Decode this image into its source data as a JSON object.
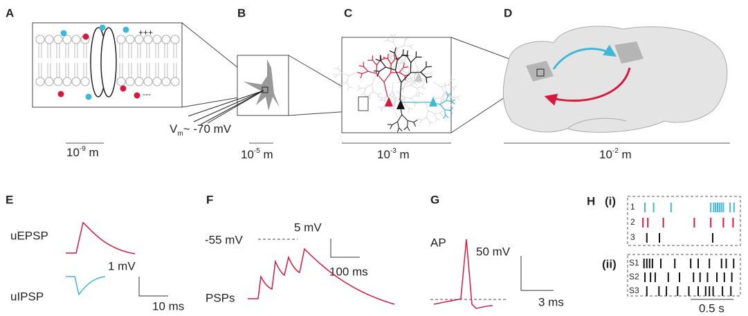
{
  "panels": {
    "A": {
      "letter": "A",
      "plus": "+++",
      "minus": "---",
      "scale": {
        "base": "10",
        "exponent": "-9",
        "unit": " m"
      }
    },
    "B": {
      "letter": "B",
      "potential": {
        "symbol": "V",
        "subscript": "m",
        "text": "~ -70 mV"
      },
      "scale": {
        "base": "10",
        "exponent": "-5",
        "unit": " m"
      }
    },
    "C": {
      "letter": "C",
      "scale": {
        "base": "10",
        "exponent": "-3",
        "unit": " m"
      }
    },
    "D": {
      "letter": "D",
      "scale": {
        "base": "10",
        "exponent": "-2",
        "unit": " m"
      }
    },
    "E": {
      "letter": "E",
      "epsp": "uEPSP",
      "ipsp": "uIPSP",
      "v_scale": "1 mV",
      "t_scale": "10 ms"
    },
    "F": {
      "letter": "F",
      "threshold": "-55 mV",
      "v_scale": "5 mV",
      "t_scale": "100 ms",
      "trace": "PSPs"
    },
    "G": {
      "letter": "G",
      "trace": "AP",
      "v_scale": "50 mV",
      "t_scale": "3 ms"
    },
    "H": {
      "letter": "H",
      "part_i": "(i)",
      "part_ii": "(ii)",
      "rows_i": [
        "1",
        "2",
        "3"
      ],
      "rows_ii": [
        "S1",
        "S2",
        "S3"
      ],
      "t_scale": "0.5 s"
    }
  }
}
